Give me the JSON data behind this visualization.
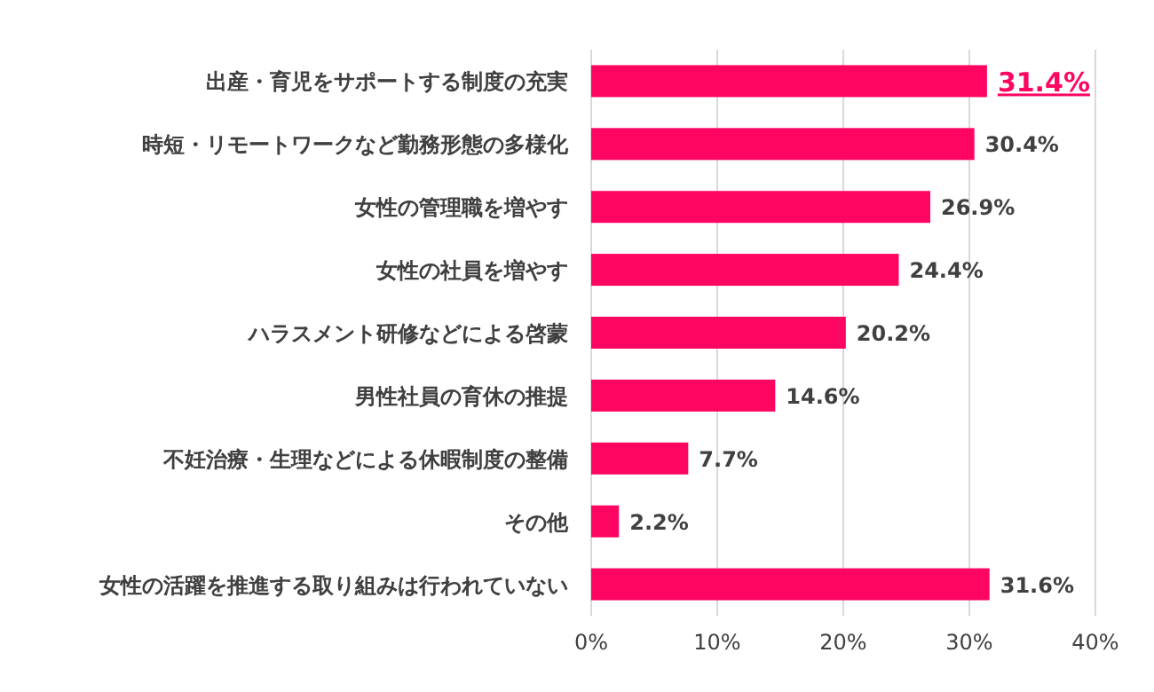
{
  "chart_data": {
    "type": "bar",
    "orientation": "horizontal",
    "categories": [
      "出産・育児をサポートする制度の充実",
      "時短・リモートワークなど勤務形態の多様化",
      "女性の管理職を増やす",
      "女性の社員を増やす",
      "ハラスメント研修などによる啓蒙",
      "男性社員の育休の推提",
      "不妊治療・生理などによる休暇制度の整備",
      "その他",
      "女性の活躍を推進する取り組みは行われていない"
    ],
    "values": [
      31.4,
      30.4,
      26.9,
      24.4,
      20.2,
      14.6,
      7.7,
      2.2,
      31.6
    ],
    "value_labels": [
      "31.4%",
      "30.4%",
      "26.9%",
      "24.4%",
      "20.2%",
      "14.6%",
      "7.7%",
      "2.2%",
      "31.6%"
    ],
    "color": "#fe0562",
    "xlim": [
      0,
      40
    ],
    "xticks": [
      {
        "value": 0,
        "label": "0%"
      },
      {
        "value": 10,
        "label": "10%"
      },
      {
        "value": 20,
        "label": "20%"
      },
      {
        "value": 30,
        "label": "30%"
      },
      {
        "value": 40,
        "label": "40%"
      }
    ],
    "grid": "x"
  }
}
